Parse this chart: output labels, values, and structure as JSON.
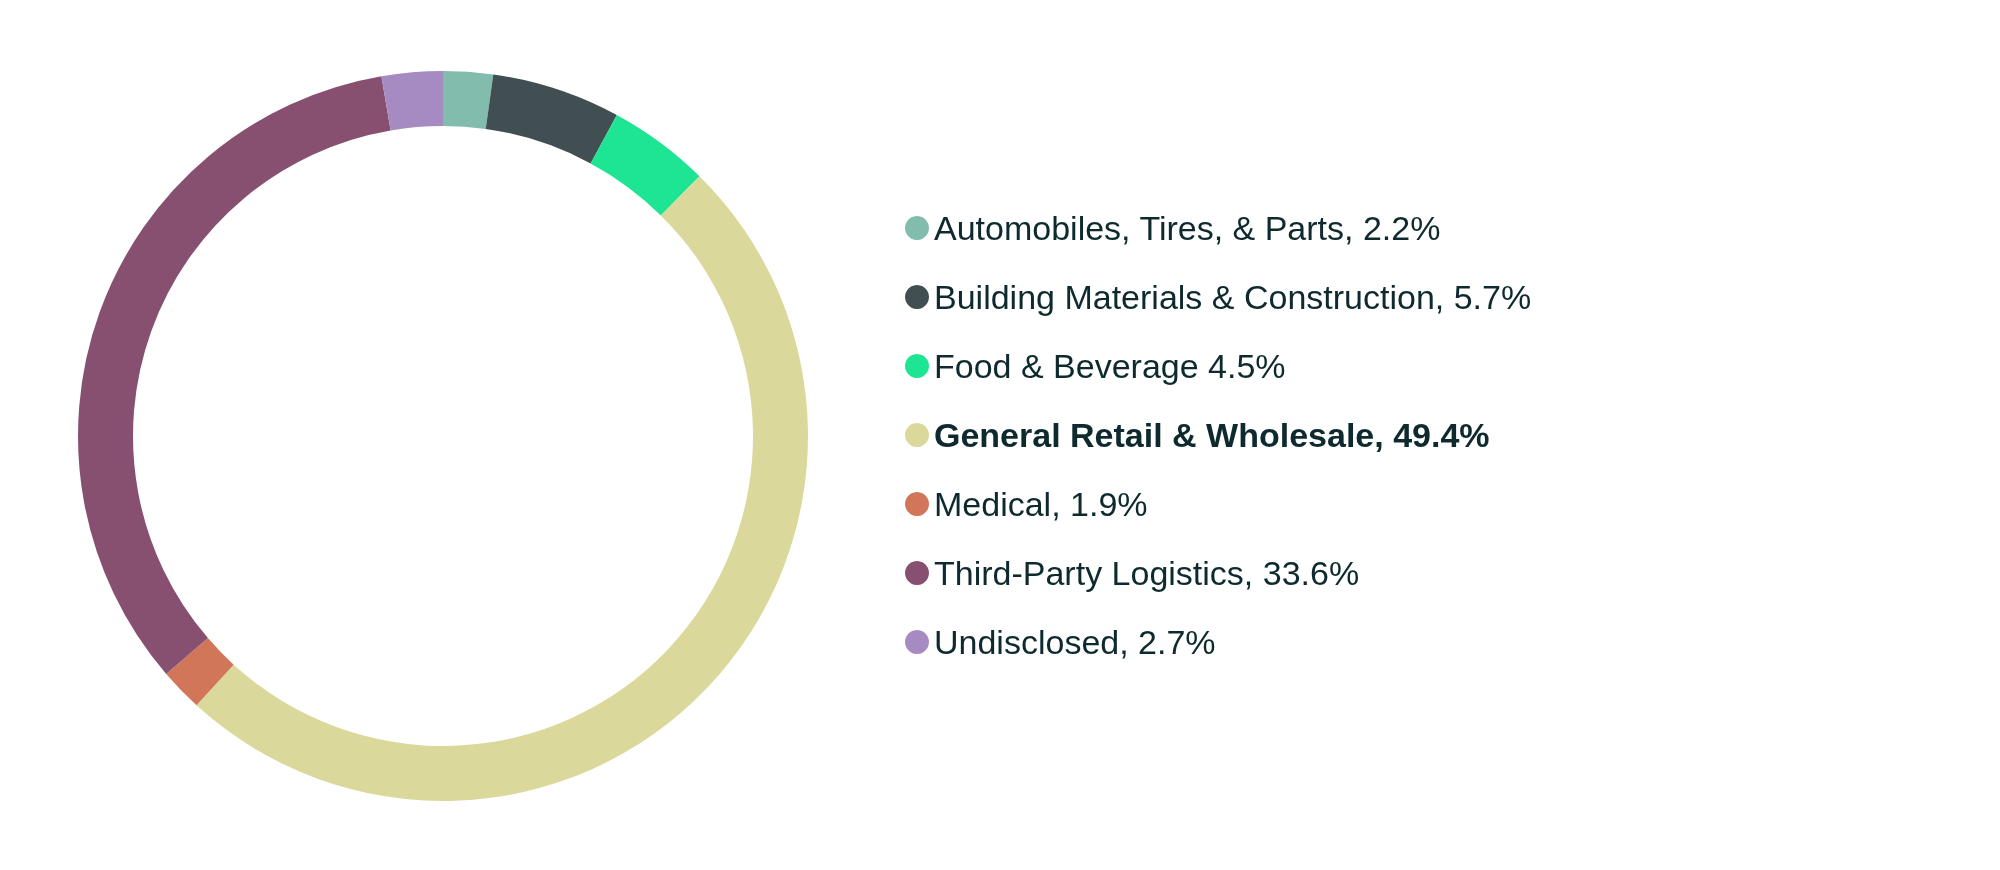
{
  "chart_data": {
    "type": "donut",
    "categories": [
      "Automobiles, Tires, & Parts, 2.2%",
      "Building Materials & Construction, 5.7%",
      "Food & Beverage 4.5%",
      "General Retail & Wholesale, 49.4%",
      "Medical, 1.9%",
      "Third-Party Logistics, 33.6%",
      "Undisclosed, 2.7%"
    ],
    "values": [
      2.2,
      5.7,
      4.5,
      49.4,
      1.9,
      33.6,
      2.7
    ],
    "colors": [
      "#82bcad",
      "#414f52",
      "#1de593",
      "#dbd89b",
      "#d2765a",
      "#875071",
      "#a58bc2"
    ],
    "legend": "right"
  }
}
